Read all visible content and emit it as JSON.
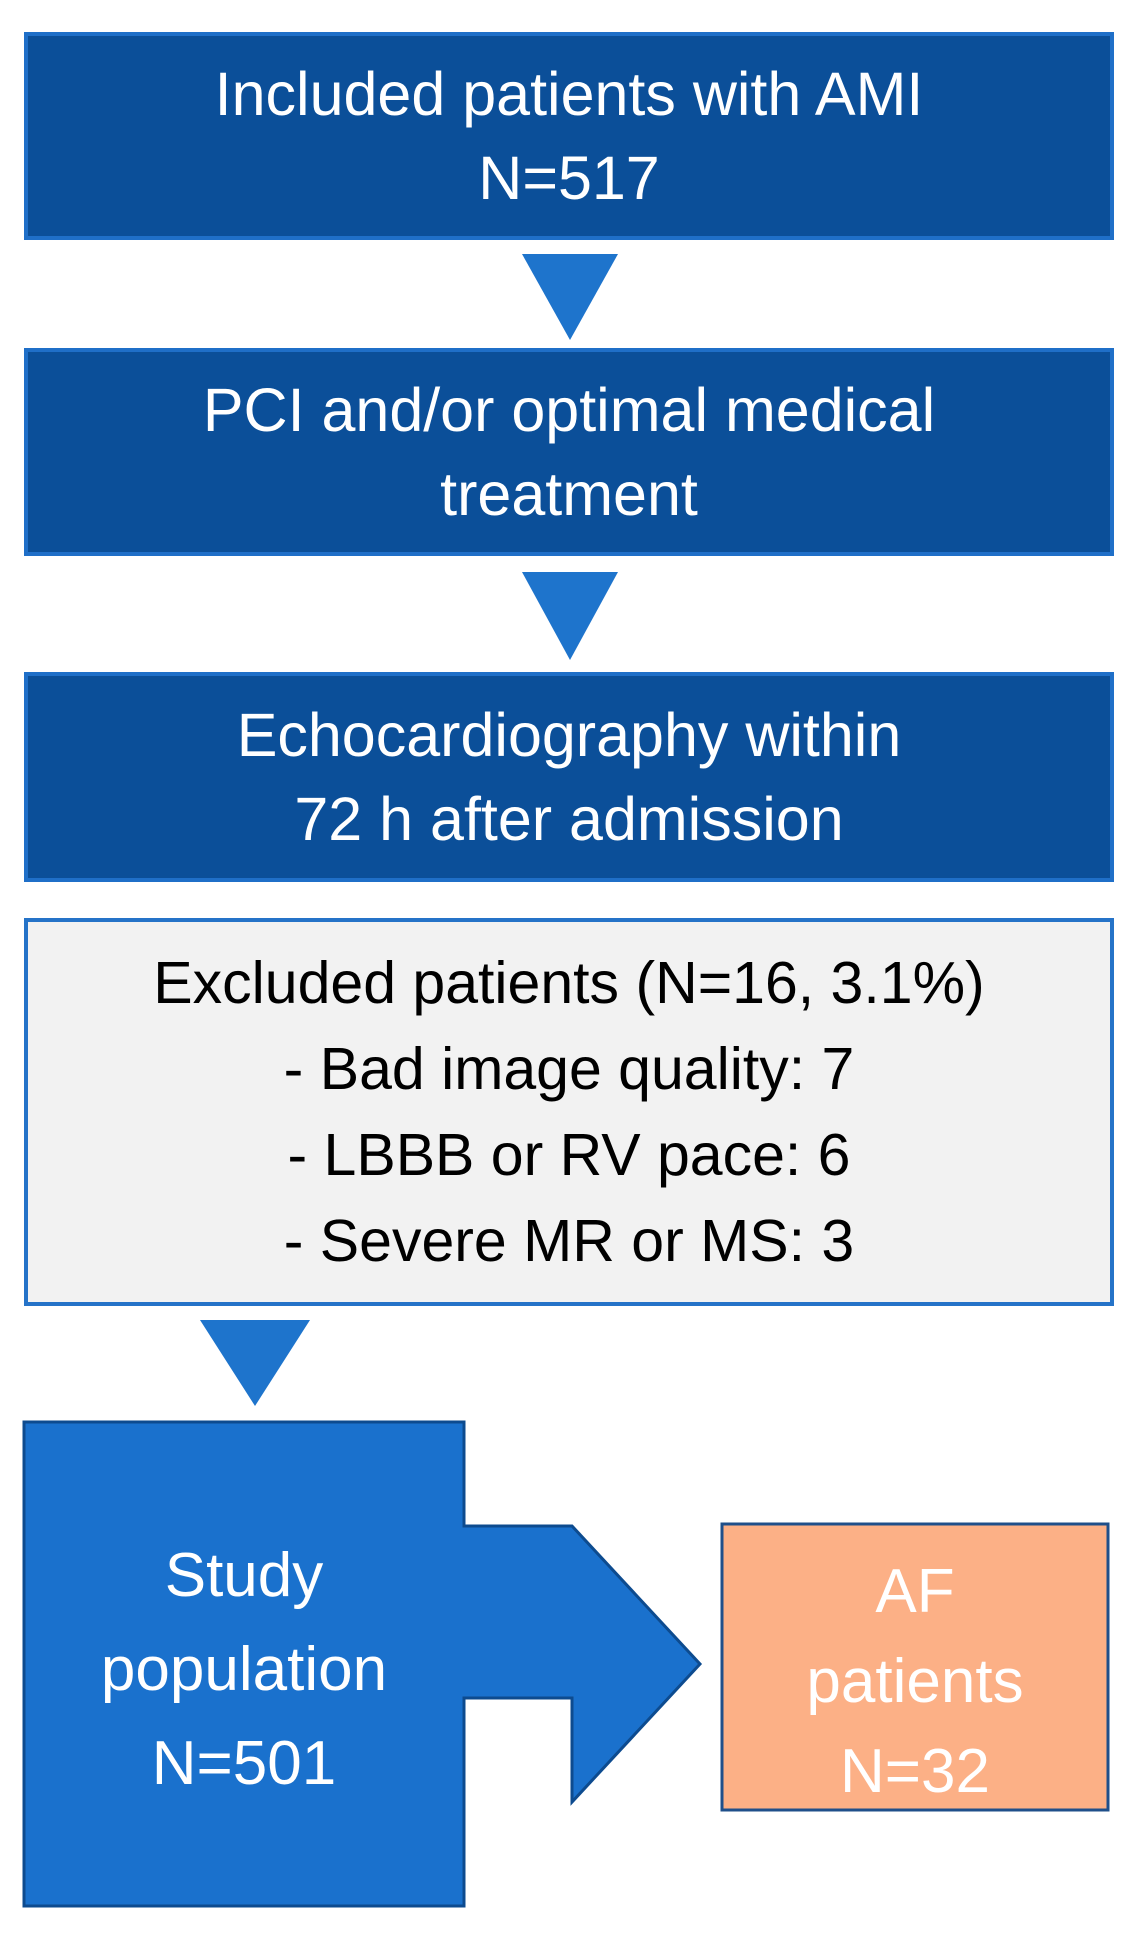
{
  "steps": {
    "included": {
      "line1": "Included patients with AMI",
      "line2": "N=517"
    },
    "treatment": {
      "line1": "PCI and/or optimal medical",
      "line2": "treatment"
    },
    "echo": {
      "line1": "Echocardiography within",
      "line2": "72 h after admission"
    },
    "excluded": {
      "title": "Excluded patients (N=16, 3.1%)",
      "reasons": [
        "- Bad image quality: 7",
        "- LBBB or RV pace: 6",
        "- Severe MR or MS: 3"
      ]
    },
    "study": {
      "line1": "Study",
      "line2": "population",
      "line3": "N=501"
    },
    "af": {
      "line1": "AF",
      "line2": "patients",
      "line3": "N=32"
    }
  },
  "colors": {
    "dark_box": "#0b4f99",
    "arrow": "#1e74cc",
    "study_box": "#1a71cd",
    "excluded_fill": "#f2f2f2",
    "af_fill": "#fcb086",
    "af_text": "#ffffff"
  }
}
